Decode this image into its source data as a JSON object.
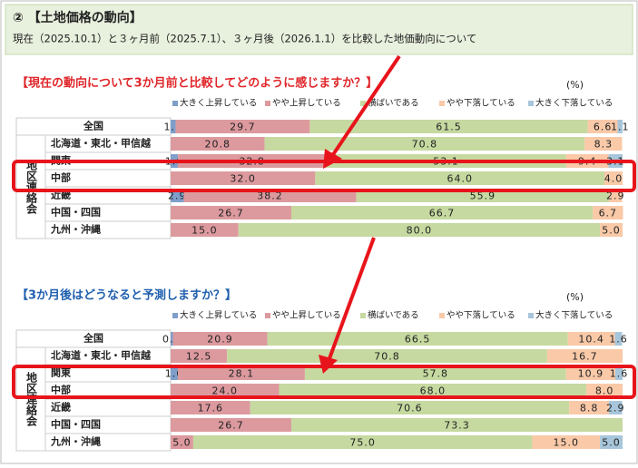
{
  "header": {
    "title": "② 【土地価格の動向】",
    "subtitle": "現在（2025.10.1）と３ヶ月前（2025.7.1）、３ヶ月後（2026.1.1）を比較した地価動向について"
  },
  "chart_data": [
    {
      "type": "stacked_bar_horizontal",
      "title": "【現在の動向について3か月前と比較してどのように感じますか？】",
      "title_color": "#e0262a",
      "unit": "(%)",
      "group_label": "地区連絡会",
      "categories": [
        "全国",
        "北海道・東北・甲信越",
        "関東",
        "中部",
        "近畿",
        "中国・四国",
        "九州・沖縄"
      ],
      "xlim": [
        0,
        100
      ],
      "series": [
        {
          "name": "大きく上昇している",
          "color": "#7f9fcb",
          "values": [
            1.1,
            0,
            1.6,
            0,
            2.9,
            0,
            0
          ],
          "value_labels": [
            "1.1",
            null,
            "1.6",
            null,
            "2.9",
            null,
            null
          ]
        },
        {
          "name": "やや上昇している",
          "color": "#dc9a9e",
          "values": [
            29.7,
            20.8,
            32.8,
            32.0,
            38.2,
            26.7,
            15.0
          ],
          "value_labels": [
            "29.7",
            "20.8",
            "32.8",
            "32.0",
            "38.2",
            "26.7",
            "15.0"
          ]
        },
        {
          "name": "横ばいである",
          "color": "#c6d9a0",
          "values": [
            61.5,
            70.8,
            53.1,
            64.0,
            55.9,
            66.7,
            80.0
          ],
          "value_labels": [
            "61.5",
            "70.8",
            "53.1",
            "64.0",
            "55.9",
            "66.7",
            "80.0"
          ]
        },
        {
          "name": "やや下落している",
          "color": "#f9c9a8",
          "values": [
            6.6,
            8.3,
            9.4,
            4.0,
            2.9,
            6.7,
            5.0
          ],
          "value_labels": [
            "6.6",
            "8.3",
            "9.4",
            "4.0",
            "2.9",
            "6.7",
            "5.0"
          ]
        },
        {
          "name": "大きく下落している",
          "color": "#a7c6db",
          "values": [
            1.1,
            0,
            3.1,
            0,
            0,
            0,
            0
          ],
          "value_labels": [
            "1.1",
            null,
            "3.1",
            null,
            null,
            null,
            null
          ]
        }
      ]
    },
    {
      "type": "stacked_bar_horizontal",
      "title": "【3か月後はどうなると予測しますか？】",
      "title_color": "#1f5fae",
      "unit": "(%)",
      "group_label": "地区連絡会",
      "categories": [
        "全国",
        "北海道・東北・甲信越",
        "関東",
        "中部",
        "近畿",
        "中国・四国",
        "九州・沖縄"
      ],
      "xlim": [
        0,
        100
      ],
      "series": [
        {
          "name": "大きく上昇している",
          "color": "#7f9fcb",
          "values": [
            0.5,
            0,
            1.6,
            0,
            0,
            0,
            0
          ],
          "value_labels": [
            "0.5",
            null,
            "1.6",
            null,
            null,
            null,
            null
          ]
        },
        {
          "name": "やや上昇している",
          "color": "#dc9a9e",
          "values": [
            20.9,
            12.5,
            28.1,
            24.0,
            17.6,
            26.7,
            5.0
          ],
          "value_labels": [
            "20.9",
            "12.5",
            "28.1",
            "24.0",
            "17.6",
            "26.7",
            "5.0"
          ]
        },
        {
          "name": "横ばいである",
          "color": "#c6d9a0",
          "values": [
            66.5,
            70.8,
            57.8,
            68.0,
            70.6,
            73.3,
            75.0
          ],
          "value_labels": [
            "66.5",
            "70.8",
            "57.8",
            "68.0",
            "70.6",
            "73.3",
            "75.0"
          ]
        },
        {
          "name": "やや下落している",
          "color": "#f9c9a8",
          "values": [
            10.4,
            16.7,
            10.9,
            8.0,
            8.8,
            0,
            15.0
          ],
          "value_labels": [
            "10.4",
            "16.7",
            "10.9",
            "8.0",
            "8.8",
            null,
            "15.0"
          ]
        },
        {
          "name": "大きく下落している",
          "color": "#a7c6db",
          "values": [
            1.6,
            0,
            1.6,
            0,
            2.9,
            0,
            5.0
          ],
          "value_labels": [
            "1.6",
            null,
            "1.6",
            null,
            "2.9",
            null,
            "5.0"
          ]
        }
      ]
    }
  ]
}
